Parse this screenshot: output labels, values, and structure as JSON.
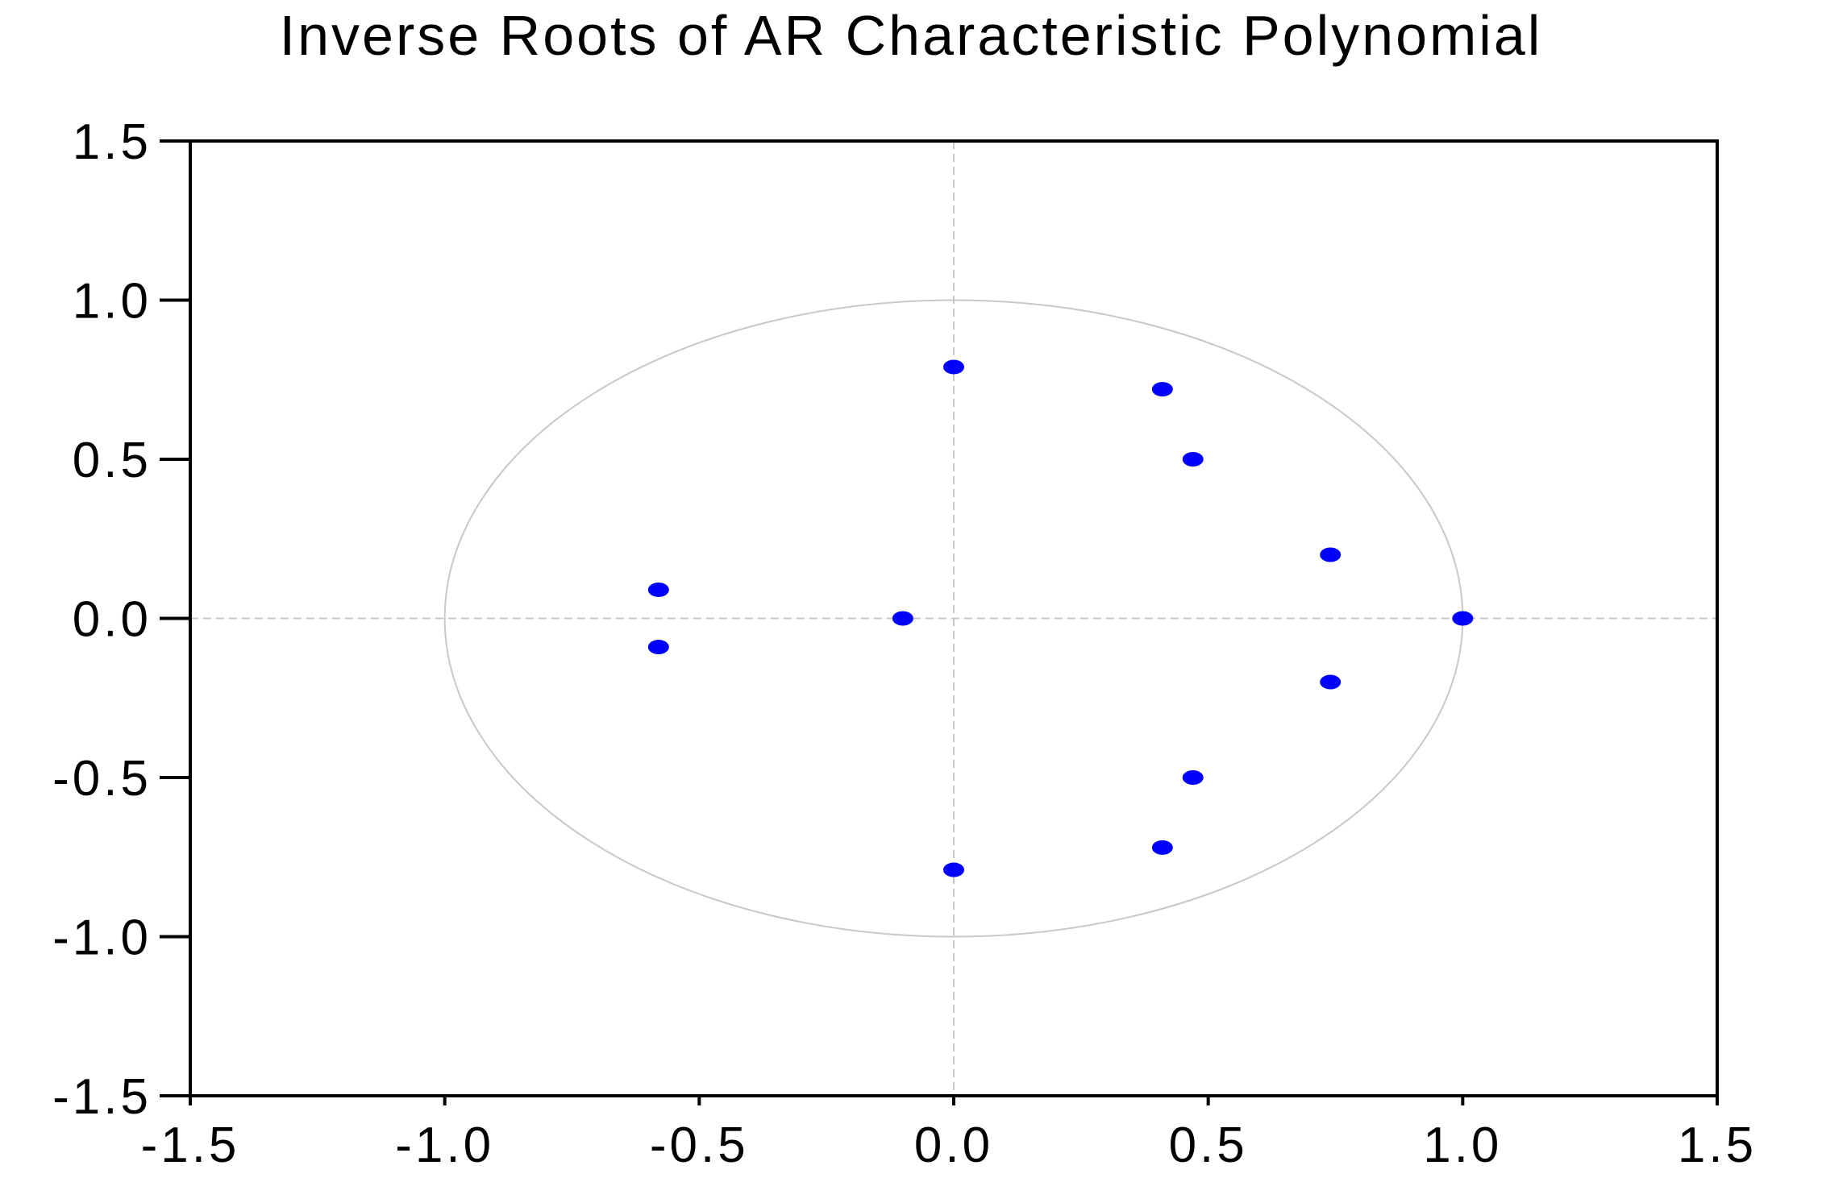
{
  "chart_data": {
    "type": "scatter",
    "title": "Inverse Roots of AR Characteristic Polynomial",
    "xlabel": "",
    "ylabel": "",
    "xlim": [
      -1.5,
      1.5
    ],
    "ylim": [
      -1.5,
      1.5
    ],
    "x_ticks": [
      "-1.5",
      "-1.0",
      "-0.5",
      "0.0",
      "0.5",
      "1.0",
      "1.5"
    ],
    "y_ticks": [
      "1.5",
      "1.0",
      "0.5",
      "0.0",
      "-0.5",
      "-1.0",
      "-1.5"
    ],
    "unit_circle": true,
    "zero_reference_lines": true,
    "grid": false,
    "point_color": "#0000ff",
    "circle_color": "#c8c8c8",
    "points": [
      {
        "x": 0.0,
        "y": 0.79
      },
      {
        "x": 0.0,
        "y": -0.79
      },
      {
        "x": 0.41,
        "y": 0.72
      },
      {
        "x": 0.41,
        "y": -0.72
      },
      {
        "x": 0.47,
        "y": 0.5
      },
      {
        "x": 0.47,
        "y": -0.5
      },
      {
        "x": 0.74,
        "y": 0.2
      },
      {
        "x": 0.74,
        "y": -0.2
      },
      {
        "x": 1.0,
        "y": 0.0
      },
      {
        "x": -0.1,
        "y": 0.0
      },
      {
        "x": -0.58,
        "y": 0.09
      },
      {
        "x": -0.58,
        "y": -0.09
      }
    ]
  }
}
